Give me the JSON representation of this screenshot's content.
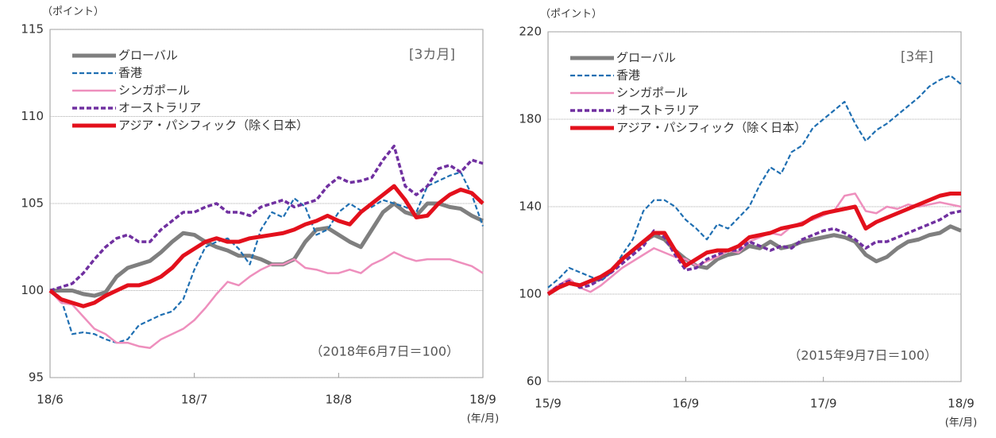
{
  "chart_data": [
    {
      "type": "line",
      "y_label": "（ポイント）",
      "period": "[3カ月]",
      "note": "（2018年6月7日＝100）",
      "x_label": "(年/月)",
      "categories": [
        "18/6",
        null,
        null,
        null,
        null,
        null,
        null,
        null,
        null,
        null,
        null,
        null,
        null,
        "18/7",
        null,
        null,
        null,
        null,
        null,
        null,
        null,
        null,
        null,
        null,
        null,
        null,
        "18/8",
        null,
        null,
        null,
        null,
        null,
        null,
        null,
        null,
        null,
        null,
        null,
        null,
        "18/9"
      ],
      "ylim": [
        95,
        115
      ],
      "yticks": [
        95,
        100,
        105,
        110,
        115
      ],
      "grid": true,
      "legend": "upper left",
      "series": [
        {
          "name": "グローバル",
          "color": "#7f7f7f",
          "dashed": false,
          "values": [
            100,
            100,
            100,
            99.8,
            99.7,
            99.9,
            100.8,
            101.3,
            101.5,
            101.7,
            102.2,
            102.8,
            103.3,
            103.2,
            102.8,
            102.5,
            102.3,
            102,
            102,
            101.8,
            101.5,
            101.5,
            101.8,
            102.8,
            103.5,
            103.6,
            103.2,
            102.8,
            102.5,
            103.5,
            104.5,
            105,
            104.5,
            104.3,
            105,
            105,
            104.8,
            104.7,
            104.3,
            104
          ]
        },
        {
          "name": "香港",
          "color": "#1f6fb2",
          "dashed": true,
          "values": [
            100,
            99.5,
            97.5,
            97.6,
            97.5,
            97.2,
            97,
            97.2,
            98,
            98.3,
            98.6,
            98.8,
            99.5,
            101.2,
            102.5,
            102.8,
            103,
            102.4,
            101.5,
            103.5,
            104.5,
            104.2,
            105.3,
            104.8,
            103.2,
            103.5,
            104.5,
            105,
            104.6,
            104.8,
            105.2,
            105,
            104.8,
            104.5,
            106,
            106.3,
            106.6,
            106.8,
            105.5,
            103.7
          ]
        },
        {
          "name": "シンガポール",
          "color": "#ee8fbd",
          "dashed": false,
          "values": [
            100,
            99.3,
            99.2,
            98.5,
            97.8,
            97.5,
            97,
            97,
            96.8,
            96.7,
            97.2,
            97.5,
            97.8,
            98.3,
            99,
            99.8,
            100.5,
            100.3,
            100.8,
            101.2,
            101.5,
            101.5,
            101.8,
            101.3,
            101.2,
            101,
            101,
            101.2,
            101,
            101.5,
            101.8,
            102.2,
            101.9,
            101.7,
            101.8,
            101.8,
            101.8,
            101.6,
            101.4,
            101
          ]
        },
        {
          "name": "オーストラリア",
          "color": "#7030a0",
          "dashed": true,
          "values": [
            100,
            100.2,
            100.4,
            101,
            101.8,
            102.5,
            103,
            103.2,
            102.8,
            102.8,
            103.5,
            104,
            104.5,
            104.5,
            104.8,
            105,
            104.5,
            104.5,
            104.3,
            104.8,
            105,
            105.2,
            104.8,
            105,
            105.2,
            106,
            106.5,
            106.2,
            106.3,
            106.5,
            107.5,
            108.3,
            106,
            105.5,
            106,
            107,
            107.2,
            106.8,
            107.5,
            107.3
          ]
        },
        {
          "name": "アジア・パシフィック（除く日本）",
          "color": "#e3101c",
          "dashed": false,
          "values": [
            100,
            99.5,
            99.3,
            99.1,
            99.3,
            99.7,
            100,
            100.3,
            100.3,
            100.5,
            100.8,
            101.3,
            102,
            102.4,
            102.8,
            103,
            102.8,
            102.8,
            103,
            103.1,
            103.2,
            103.3,
            103.5,
            103.8,
            104,
            104.3,
            104,
            103.8,
            104.5,
            105,
            105.5,
            106,
            105.2,
            104.2,
            104.3,
            105,
            105.5,
            105.8,
            105.6,
            105
          ]
        }
      ]
    },
    {
      "type": "line",
      "y_label": "（ポイント）",
      "period": "[3年]",
      "note": "（2015年9月7日＝100）",
      "x_label": "(年/月)",
      "categories": [
        "15/9",
        null,
        null,
        null,
        null,
        null,
        null,
        null,
        null,
        null,
        null,
        null,
        null,
        "16/9",
        null,
        null,
        null,
        null,
        null,
        null,
        null,
        null,
        null,
        null,
        null,
        null,
        "17/9",
        null,
        null,
        null,
        null,
        null,
        null,
        null,
        null,
        null,
        null,
        null,
        null,
        "18/9"
      ],
      "ylim": [
        60,
        220
      ],
      "yticks": [
        60,
        100,
        140,
        180,
        220
      ],
      "grid": true,
      "legend": "upper left",
      "series": [
        {
          "name": "グローバル",
          "color": "#7f7f7f",
          "dashed": false,
          "values": [
            100,
            103,
            105,
            104,
            106,
            107,
            111,
            116,
            120,
            124,
            127,
            125,
            120,
            116,
            113,
            112,
            116,
            118,
            119,
            122,
            121,
            124,
            121,
            122,
            124,
            125,
            126,
            127,
            126,
            124,
            118,
            115,
            117,
            121,
            124,
            125,
            127,
            128,
            131,
            129
          ]
        },
        {
          "name": "香港",
          "color": "#1f6fb2",
          "dashed": true,
          "values": [
            103,
            107,
            112,
            110,
            108,
            106,
            110,
            118,
            125,
            138,
            143,
            143,
            140,
            134,
            130,
            125,
            132,
            130,
            135,
            140,
            150,
            158,
            155,
            165,
            168,
            176,
            180,
            184,
            188,
            178,
            170,
            175,
            178,
            182,
            186,
            190,
            195,
            198,
            200,
            196
          ]
        },
        {
          "name": "シンガポール",
          "color": "#ee8fbd",
          "dashed": false,
          "values": [
            101,
            104,
            107,
            103,
            101,
            104,
            108,
            112,
            115,
            118,
            121,
            119,
            117,
            116,
            113,
            115,
            117,
            120,
            119,
            124,
            126,
            128,
            127,
            131,
            133,
            134,
            136,
            138,
            145,
            146,
            138,
            137,
            140,
            139,
            141,
            140,
            141,
            142,
            141,
            140
          ]
        },
        {
          "name": "オーストラリア",
          "color": "#7030a0",
          "dashed": true,
          "values": [
            100,
            104,
            106,
            103,
            104,
            107,
            110,
            114,
            118,
            122,
            129,
            126,
            118,
            111,
            112,
            116,
            118,
            120,
            120,
            124,
            122,
            120,
            122,
            121,
            125,
            127,
            129,
            130,
            128,
            125,
            121,
            124,
            124,
            126,
            128,
            130,
            132,
            134,
            137,
            138
          ]
        },
        {
          "name": "アジア・パシフィック（除く日本）",
          "color": "#e3101c",
          "dashed": false,
          "values": [
            100,
            103,
            105,
            104,
            106,
            108,
            111,
            116,
            120,
            124,
            128,
            128,
            120,
            113,
            116,
            119,
            120,
            120,
            122,
            126,
            127,
            128,
            130,
            131,
            132,
            135,
            137,
            138,
            139,
            140,
            130,
            133,
            135,
            137,
            139,
            141,
            143,
            145,
            146,
            146
          ]
        }
      ]
    }
  ]
}
